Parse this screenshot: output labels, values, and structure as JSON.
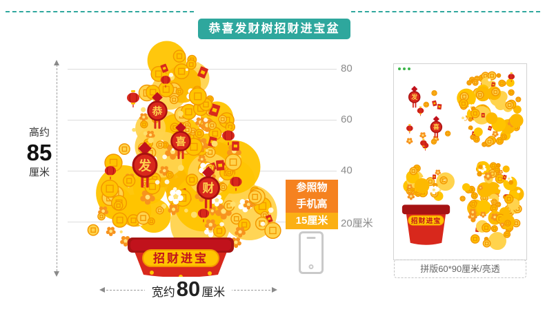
{
  "badge": {
    "title": "恭喜发财树招财进宝盆"
  },
  "dimensions": {
    "height": {
      "prefix": "高约",
      "value": "85",
      "unit": "厘米"
    },
    "width": {
      "prefix": "宽约",
      "value": "80",
      "unit": "厘米"
    }
  },
  "ruler": {
    "labels": [
      "80",
      "60",
      "40",
      "20厘米"
    ]
  },
  "reference": {
    "line1": "参照物",
    "line2": "手机高",
    "line3": "15厘米"
  },
  "tree": {
    "pot_text": "招财进宝",
    "knot_chars": [
      "恭",
      "喜",
      "发",
      "财"
    ]
  },
  "panel": {
    "caption": "拼版60*90厘米/亮透",
    "pot_text": "招财进宝"
  },
  "colors": {
    "teal": "#2ea79d",
    "orange": "#f58220",
    "orange_hl": "#fbb014",
    "gold": "#ffc400",
    "gold_deep": "#f39800",
    "red": "#d8281c",
    "dark_red": "#a61313",
    "plaque_red": "#c1121c",
    "gray": "#8a8a8a",
    "green_dot": "#3cb54a"
  }
}
